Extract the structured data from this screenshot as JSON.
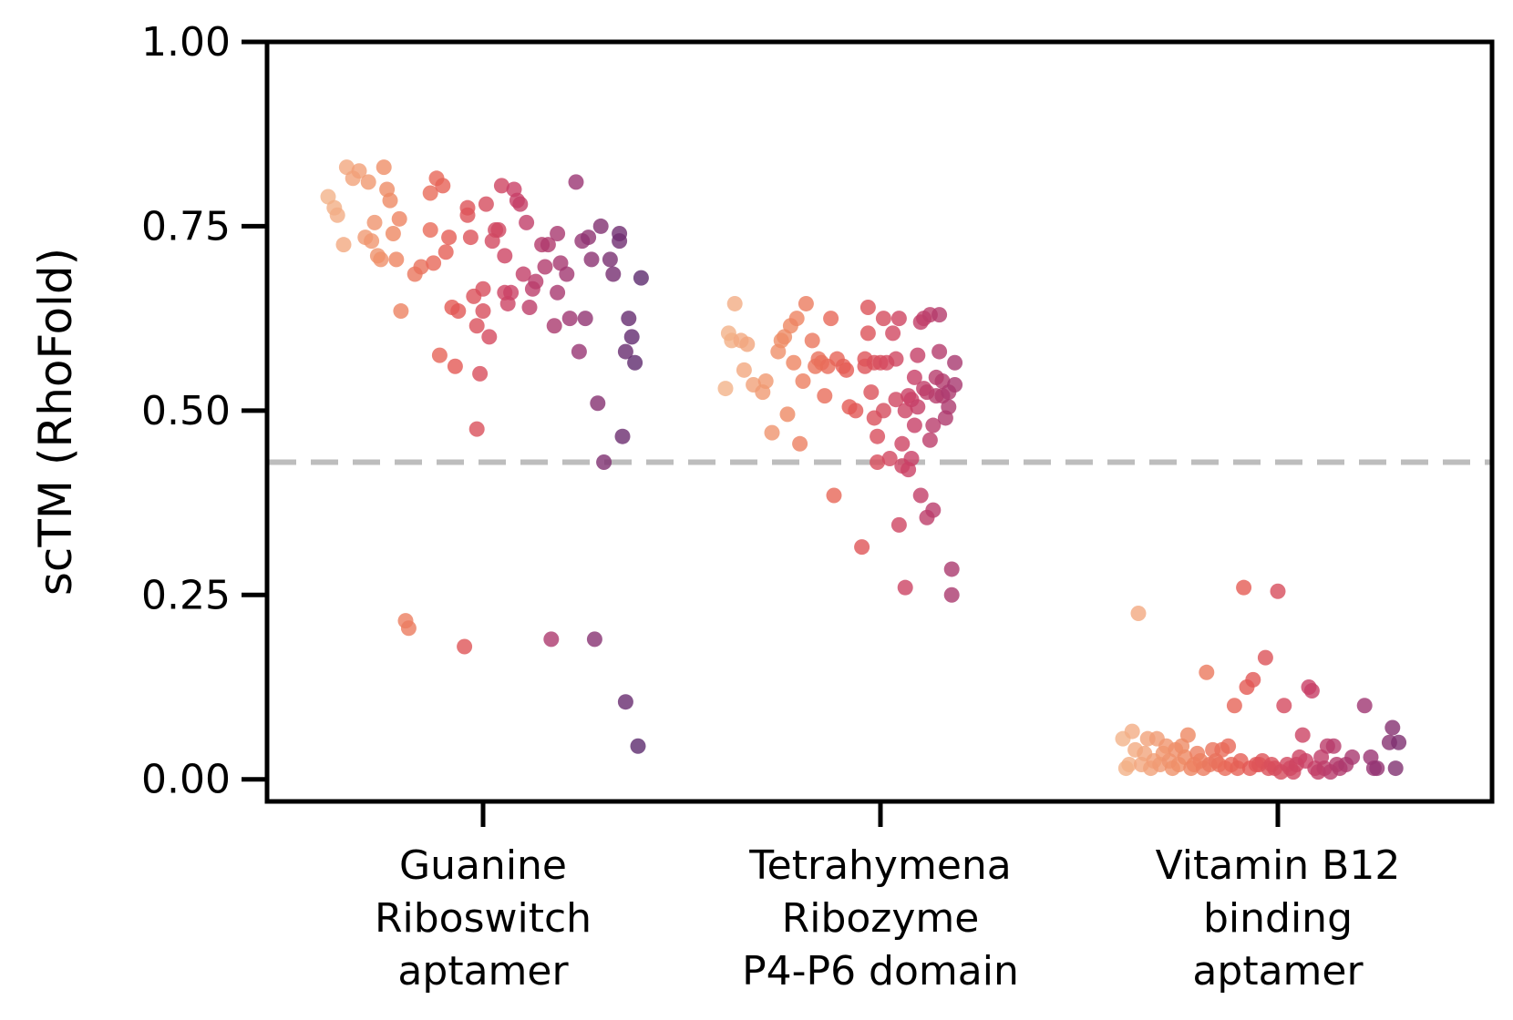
{
  "chart_data": {
    "type": "scatter",
    "subtype": "strip",
    "title": "",
    "xlabel": "",
    "ylabel": "scTM (RhoFold)",
    "ylim": [
      -0.03,
      1.0
    ],
    "yticks": [
      0.0,
      0.25,
      0.5,
      0.75,
      1.0
    ],
    "ytick_labels": [
      "0.00",
      "0.25",
      "0.50",
      "0.75",
      "1.00"
    ],
    "threshold": 0.43,
    "threshold_color": "#bdbdbd",
    "palette": [
      "#f3b38a",
      "#ee8a64",
      "#e45a54",
      "#c94066",
      "#9a3573",
      "#5c2a6e"
    ],
    "categories": [
      {
        "label_lines": [
          "Guanine",
          "Riboswitch",
          "aptamer"
        ],
        "points": [
          [
            0.0,
            0.79
          ],
          [
            0.02,
            0.775
          ],
          [
            0.03,
            0.765
          ],
          [
            0.05,
            0.725
          ],
          [
            0.06,
            0.83
          ],
          [
            0.08,
            0.815
          ],
          [
            0.1,
            0.825
          ],
          [
            0.12,
            0.735
          ],
          [
            0.13,
            0.81
          ],
          [
            0.14,
            0.73
          ],
          [
            0.15,
            0.755
          ],
          [
            0.16,
            0.71
          ],
          [
            0.17,
            0.705
          ],
          [
            0.18,
            0.83
          ],
          [
            0.19,
            0.8
          ],
          [
            0.2,
            0.785
          ],
          [
            0.21,
            0.74
          ],
          [
            0.22,
            0.705
          ],
          [
            0.23,
            0.76
          ],
          [
            0.235,
            0.635
          ],
          [
            0.25,
            0.215
          ],
          [
            0.26,
            0.205
          ],
          [
            0.28,
            0.685
          ],
          [
            0.3,
            0.695
          ],
          [
            0.33,
            0.745
          ],
          [
            0.33,
            0.795
          ],
          [
            0.34,
            0.7
          ],
          [
            0.35,
            0.815
          ],
          [
            0.36,
            0.575
          ],
          [
            0.37,
            0.805
          ],
          [
            0.38,
            0.715
          ],
          [
            0.39,
            0.735
          ],
          [
            0.4,
            0.64
          ],
          [
            0.41,
            0.56
          ],
          [
            0.42,
            0.635
          ],
          [
            0.44,
            0.18
          ],
          [
            0.45,
            0.765
          ],
          [
            0.45,
            0.775
          ],
          [
            0.46,
            0.735
          ],
          [
            0.47,
            0.655
          ],
          [
            0.48,
            0.615
          ],
          [
            0.48,
            0.475
          ],
          [
            0.49,
            0.55
          ],
          [
            0.5,
            0.635
          ],
          [
            0.5,
            0.665
          ],
          [
            0.51,
            0.78
          ],
          [
            0.52,
            0.6
          ],
          [
            0.53,
            0.73
          ],
          [
            0.54,
            0.745
          ],
          [
            0.55,
            0.745
          ],
          [
            0.56,
            0.805
          ],
          [
            0.57,
            0.71
          ],
          [
            0.57,
            0.66
          ],
          [
            0.58,
            0.645
          ],
          [
            0.59,
            0.66
          ],
          [
            0.6,
            0.8
          ],
          [
            0.61,
            0.785
          ],
          [
            0.62,
            0.78
          ],
          [
            0.63,
            0.685
          ],
          [
            0.64,
            0.755
          ],
          [
            0.65,
            0.64
          ],
          [
            0.66,
            0.665
          ],
          [
            0.67,
            0.675
          ],
          [
            0.69,
            0.725
          ],
          [
            0.7,
            0.695
          ],
          [
            0.71,
            0.725
          ],
          [
            0.72,
            0.19
          ],
          [
            0.73,
            0.615
          ],
          [
            0.74,
            0.74
          ],
          [
            0.74,
            0.66
          ],
          [
            0.75,
            0.7
          ],
          [
            0.77,
            0.685
          ],
          [
            0.78,
            0.625
          ],
          [
            0.8,
            0.81
          ],
          [
            0.81,
            0.58
          ],
          [
            0.82,
            0.73
          ],
          [
            0.83,
            0.625
          ],
          [
            0.84,
            0.735
          ],
          [
            0.85,
            0.705
          ],
          [
            0.86,
            0.19
          ],
          [
            0.87,
            0.51
          ],
          [
            0.88,
            0.75
          ],
          [
            0.89,
            0.43
          ],
          [
            0.91,
            0.705
          ],
          [
            0.92,
            0.685
          ],
          [
            0.94,
            0.74
          ],
          [
            0.94,
            0.73
          ],
          [
            0.95,
            0.465
          ],
          [
            0.96,
            0.58
          ],
          [
            0.96,
            0.105
          ],
          [
            0.97,
            0.625
          ],
          [
            0.98,
            0.6
          ],
          [
            0.99,
            0.565
          ],
          [
            1.0,
            0.045
          ],
          [
            1.01,
            0.68
          ]
        ]
      },
      {
        "label_lines": [
          "Tetrahymena",
          "Ribozyme",
          "P4-P6 domain"
        ],
        "points": [
          [
            0.0,
            0.53
          ],
          [
            0.01,
            0.605
          ],
          [
            0.02,
            0.595
          ],
          [
            0.03,
            0.645
          ],
          [
            0.05,
            0.595
          ],
          [
            0.06,
            0.555
          ],
          [
            0.07,
            0.59
          ],
          [
            0.09,
            0.535
          ],
          [
            0.12,
            0.525
          ],
          [
            0.13,
            0.54
          ],
          [
            0.15,
            0.47
          ],
          [
            0.17,
            0.58
          ],
          [
            0.18,
            0.595
          ],
          [
            0.19,
            0.6
          ],
          [
            0.2,
            0.495
          ],
          [
            0.21,
            0.615
          ],
          [
            0.22,
            0.565
          ],
          [
            0.23,
            0.625
          ],
          [
            0.24,
            0.455
          ],
          [
            0.25,
            0.54
          ],
          [
            0.26,
            0.645
          ],
          [
            0.28,
            0.595
          ],
          [
            0.29,
            0.56
          ],
          [
            0.3,
            0.57
          ],
          [
            0.31,
            0.565
          ],
          [
            0.32,
            0.52
          ],
          [
            0.33,
            0.56
          ],
          [
            0.34,
            0.625
          ],
          [
            0.35,
            0.385
          ],
          [
            0.36,
            0.57
          ],
          [
            0.38,
            0.56
          ],
          [
            0.39,
            0.555
          ],
          [
            0.4,
            0.505
          ],
          [
            0.42,
            0.5
          ],
          [
            0.44,
            0.315
          ],
          [
            0.45,
            0.57
          ],
          [
            0.45,
            0.56
          ],
          [
            0.46,
            0.64
          ],
          [
            0.46,
            0.605
          ],
          [
            0.47,
            0.525
          ],
          [
            0.48,
            0.49
          ],
          [
            0.48,
            0.565
          ],
          [
            0.49,
            0.43
          ],
          [
            0.49,
            0.465
          ],
          [
            0.5,
            0.565
          ],
          [
            0.51,
            0.625
          ],
          [
            0.51,
            0.5
          ],
          [
            0.52,
            0.565
          ],
          [
            0.53,
            0.435
          ],
          [
            0.54,
            0.605
          ],
          [
            0.55,
            0.57
          ],
          [
            0.55,
            0.515
          ],
          [
            0.56,
            0.625
          ],
          [
            0.56,
            0.345
          ],
          [
            0.57,
            0.455
          ],
          [
            0.57,
            0.425
          ],
          [
            0.58,
            0.5
          ],
          [
            0.58,
            0.26
          ],
          [
            0.59,
            0.42
          ],
          [
            0.59,
            0.52
          ],
          [
            0.6,
            0.435
          ],
          [
            0.6,
            0.515
          ],
          [
            0.61,
            0.545
          ],
          [
            0.61,
            0.48
          ],
          [
            0.62,
            0.505
          ],
          [
            0.62,
            0.575
          ],
          [
            0.63,
            0.385
          ],
          [
            0.63,
            0.62
          ],
          [
            0.64,
            0.53
          ],
          [
            0.64,
            0.625
          ],
          [
            0.65,
            0.525
          ],
          [
            0.65,
            0.355
          ],
          [
            0.66,
            0.46
          ],
          [
            0.66,
            0.63
          ],
          [
            0.67,
            0.365
          ],
          [
            0.67,
            0.48
          ],
          [
            0.68,
            0.52
          ],
          [
            0.68,
            0.545
          ],
          [
            0.69,
            0.63
          ],
          [
            0.69,
            0.58
          ],
          [
            0.7,
            0.54
          ],
          [
            0.7,
            0.52
          ],
          [
            0.71,
            0.49
          ],
          [
            0.72,
            0.505
          ],
          [
            0.72,
            0.525
          ],
          [
            0.73,
            0.285
          ],
          [
            0.73,
            0.25
          ],
          [
            0.74,
            0.565
          ],
          [
            0.74,
            0.535
          ]
        ]
      },
      {
        "label_lines": [
          "Vitamin B12",
          "binding",
          "aptamer"
        ],
        "points": [
          [
            0.0,
            0.055
          ],
          [
            0.01,
            0.015
          ],
          [
            0.02,
            0.02
          ],
          [
            0.03,
            0.065
          ],
          [
            0.04,
            0.04
          ],
          [
            0.05,
            0.225
          ],
          [
            0.06,
            0.02
          ],
          [
            0.07,
            0.035
          ],
          [
            0.08,
            0.055
          ],
          [
            0.09,
            0.015
          ],
          [
            0.1,
            0.025
          ],
          [
            0.11,
            0.055
          ],
          [
            0.12,
            0.02
          ],
          [
            0.13,
            0.035
          ],
          [
            0.14,
            0.045
          ],
          [
            0.15,
            0.025
          ],
          [
            0.16,
            0.015
          ],
          [
            0.17,
            0.04
          ],
          [
            0.18,
            0.02
          ],
          [
            0.19,
            0.045
          ],
          [
            0.2,
            0.03
          ],
          [
            0.21,
            0.06
          ],
          [
            0.22,
            0.015
          ],
          [
            0.23,
            0.02
          ],
          [
            0.24,
            0.035
          ],
          [
            0.25,
            0.025
          ],
          [
            0.26,
            0.015
          ],
          [
            0.27,
            0.145
          ],
          [
            0.28,
            0.02
          ],
          [
            0.29,
            0.04
          ],
          [
            0.3,
            0.025
          ],
          [
            0.31,
            0.02
          ],
          [
            0.32,
            0.04
          ],
          [
            0.33,
            0.015
          ],
          [
            0.34,
            0.045
          ],
          [
            0.35,
            0.02
          ],
          [
            0.36,
            0.1
          ],
          [
            0.37,
            0.015
          ],
          [
            0.38,
            0.025
          ],
          [
            0.39,
            0.26
          ],
          [
            0.4,
            0.125
          ],
          [
            0.41,
            0.015
          ],
          [
            0.42,
            0.135
          ],
          [
            0.43,
            0.02
          ],
          [
            0.44,
            0.02
          ],
          [
            0.45,
            0.025
          ],
          [
            0.46,
            0.165
          ],
          [
            0.47,
            0.015
          ],
          [
            0.48,
            0.02
          ],
          [
            0.49,
            0.015
          ],
          [
            0.5,
            0.255
          ],
          [
            0.51,
            0.01
          ],
          [
            0.52,
            0.1
          ],
          [
            0.53,
            0.02
          ],
          [
            0.54,
            0.015
          ],
          [
            0.55,
            0.01
          ],
          [
            0.56,
            0.02
          ],
          [
            0.57,
            0.03
          ],
          [
            0.58,
            0.06
          ],
          [
            0.59,
            0.025
          ],
          [
            0.6,
            0.125
          ],
          [
            0.61,
            0.12
          ],
          [
            0.62,
            0.015
          ],
          [
            0.63,
            0.01
          ],
          [
            0.64,
            0.03
          ],
          [
            0.65,
            0.015
          ],
          [
            0.66,
            0.045
          ],
          [
            0.67,
            0.01
          ],
          [
            0.68,
            0.045
          ],
          [
            0.69,
            0.02
          ],
          [
            0.7,
            0.015
          ],
          [
            0.72,
            0.02
          ],
          [
            0.74,
            0.03
          ],
          [
            0.78,
            0.1
          ],
          [
            0.8,
            0.03
          ],
          [
            0.81,
            0.015
          ],
          [
            0.82,
            0.015
          ],
          [
            0.86,
            0.05
          ],
          [
            0.87,
            0.07
          ],
          [
            0.88,
            0.015
          ],
          [
            0.89,
            0.05
          ]
        ]
      }
    ]
  }
}
